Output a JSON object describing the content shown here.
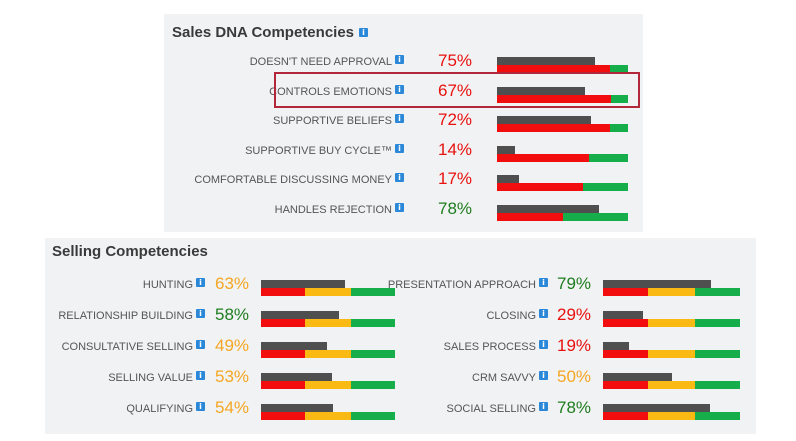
{
  "sales_dna": {
    "title": "Sales DNA Competencies",
    "info_glyph": "i",
    "rows": [
      {
        "label": "DOESN'T NEED APPROVAL",
        "percent": "75%",
        "value": 75,
        "color": "red",
        "red_fraction": 0.86
      },
      {
        "label": "CONTROLS EMOTIONS",
        "percent": "67%",
        "value": 67,
        "color": "red",
        "red_fraction": 0.87,
        "highlighted": true
      },
      {
        "label": "SUPPORTIVE BELIEFS",
        "percent": "72%",
        "value": 72,
        "color": "red",
        "red_fraction": 0.86
      },
      {
        "label": "SUPPORTIVE BUY CYCLE™",
        "percent": "14%",
        "value": 14,
        "color": "red",
        "red_fraction": 0.7
      },
      {
        "label": "COMFORTABLE DISCUSSING MONEY",
        "percent": "17%",
        "value": 17,
        "color": "red",
        "red_fraction": 0.66
      },
      {
        "label": "HANDLES REJECTION",
        "percent": "78%",
        "value": 78,
        "color": "green",
        "red_fraction": 0.5
      }
    ]
  },
  "selling": {
    "title": "Selling Competencies",
    "info_glyph": "i",
    "threshold_fractions": [
      0.33,
      0.67
    ],
    "left_rows": [
      {
        "label": "HUNTING",
        "percent": "63%",
        "value": 63,
        "color": "orange"
      },
      {
        "label": "RELATIONSHIP BUILDING",
        "percent": "58%",
        "value": 58,
        "color": "green"
      },
      {
        "label": "CONSULTATIVE SELLING",
        "percent": "49%",
        "value": 49,
        "color": "orange"
      },
      {
        "label": "SELLING VALUE",
        "percent": "53%",
        "value": 53,
        "color": "orange"
      },
      {
        "label": "QUALIFYING",
        "percent": "54%",
        "value": 54,
        "color": "orange"
      }
    ],
    "right_rows": [
      {
        "label": "PRESENTATION APPROACH",
        "percent": "79%",
        "value": 79,
        "color": "green"
      },
      {
        "label": "CLOSING",
        "percent": "29%",
        "value": 29,
        "color": "red"
      },
      {
        "label": "SALES PROCESS",
        "percent": "19%",
        "value": 19,
        "color": "red"
      },
      {
        "label": "CRM SAVVY",
        "percent": "50%",
        "value": 50,
        "color": "orange"
      },
      {
        "label": "SOCIAL SELLING",
        "percent": "78%",
        "value": 78,
        "color": "green"
      }
    ]
  },
  "colors": {
    "bar_gray": "#4f4f4f",
    "red": "#f20e0e",
    "yellow": "#fbb914",
    "green": "#16ad4b",
    "highlight_border": "#b2283a"
  }
}
